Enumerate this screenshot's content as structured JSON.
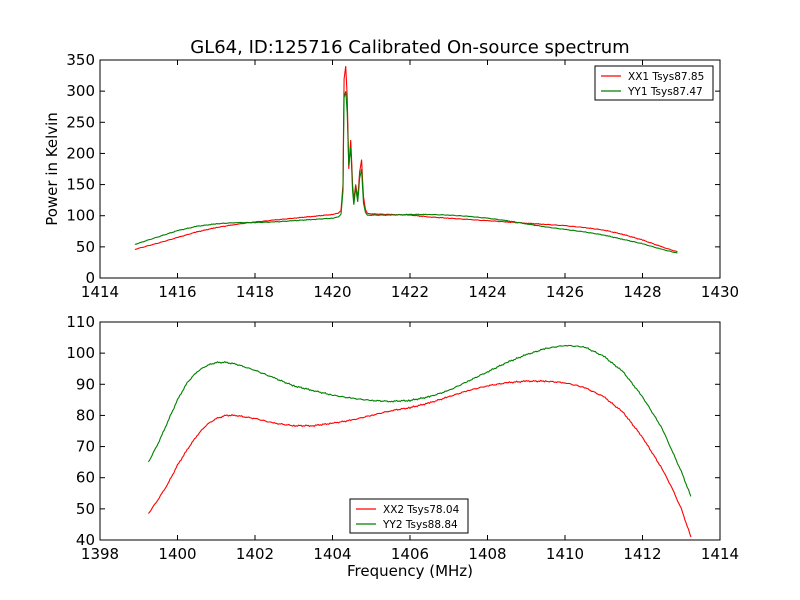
{
  "title": "GL64, ID:125716 Calibrated On-source spectrum",
  "chart_data": [
    {
      "type": "line",
      "xlim": [
        1414,
        1430
      ],
      "ylim": [
        0,
        350
      ],
      "xticks": [
        1414,
        1416,
        1418,
        1420,
        1422,
        1424,
        1426,
        1428,
        1430
      ],
      "yticks": [
        0,
        50,
        100,
        150,
        200,
        250,
        300,
        350
      ],
      "xlabel": "",
      "ylabel": "Power in Kelvin",
      "legend_position": "top-right",
      "series": [
        {
          "name": "XX1 Tsys87.85",
          "color": "#ff0000",
          "x": [
            1414.9,
            1415.5,
            1416.0,
            1416.5,
            1417.0,
            1417.5,
            1418.0,
            1418.5,
            1419.0,
            1419.5,
            1420.0,
            1420.15,
            1420.22,
            1420.27,
            1420.3,
            1420.34,
            1420.38,
            1420.42,
            1420.47,
            1420.52,
            1420.55,
            1420.6,
            1420.65,
            1420.7,
            1420.75,
            1420.8,
            1420.85,
            1420.9,
            1421.0,
            1421.5,
            1422.0,
            1422.5,
            1423.0,
            1423.5,
            1424.0,
            1424.5,
            1425.0,
            1425.5,
            1426.0,
            1426.5,
            1427.0,
            1427.5,
            1428.0,
            1428.5,
            1428.9
          ],
          "y": [
            46,
            56,
            65,
            74,
            81,
            86,
            90,
            93,
            96,
            99,
            102,
            104,
            108,
            150,
            320,
            340,
            290,
            175,
            222,
            150,
            125,
            150,
            128,
            170,
            190,
            130,
            110,
            104,
            103,
            102,
            101,
            98,
            96,
            94,
            92,
            90,
            88,
            86,
            84,
            81,
            77,
            70,
            61,
            50,
            42
          ]
        },
        {
          "name": "YY1 Tsys87.47",
          "color": "#008000",
          "x": [
            1414.9,
            1415.5,
            1416.0,
            1416.5,
            1417.0,
            1417.5,
            1418.0,
            1418.5,
            1419.0,
            1419.5,
            1420.0,
            1420.15,
            1420.22,
            1420.27,
            1420.3,
            1420.34,
            1420.38,
            1420.42,
            1420.47,
            1420.52,
            1420.55,
            1420.6,
            1420.65,
            1420.7,
            1420.75,
            1420.8,
            1420.85,
            1420.9,
            1421.0,
            1421.5,
            1422.0,
            1422.5,
            1423.0,
            1423.5,
            1424.0,
            1424.5,
            1425.0,
            1425.5,
            1426.0,
            1426.5,
            1427.0,
            1427.5,
            1428.0,
            1428.5,
            1428.9
          ],
          "y": [
            54,
            66,
            76,
            83,
            87,
            89,
            89,
            90,
            92,
            94,
            96,
            98,
            102,
            140,
            290,
            300,
            265,
            180,
            210,
            140,
            118,
            145,
            122,
            160,
            175,
            120,
            105,
            101,
            101,
            101,
            102,
            102,
            101,
            99,
            96,
            92,
            87,
            82,
            78,
            74,
            69,
            62,
            55,
            46,
            40
          ]
        }
      ]
    },
    {
      "type": "line",
      "xlim": [
        1398,
        1414
      ],
      "ylim": [
        40,
        110
      ],
      "xticks": [
        1398,
        1400,
        1402,
        1404,
        1406,
        1408,
        1410,
        1412,
        1414
      ],
      "yticks": [
        40,
        50,
        60,
        70,
        80,
        90,
        100,
        110
      ],
      "xlabel": "Frequency (MHz)",
      "ylabel": "",
      "legend_position": "lower-center",
      "series": [
        {
          "name": "XX2 Tsys78.04",
          "color": "#ff0000",
          "x": [
            1399.25,
            1399.5,
            1399.75,
            1400.0,
            1400.25,
            1400.5,
            1400.75,
            1401.0,
            1401.25,
            1401.5,
            1401.75,
            1402.0,
            1402.5,
            1403.0,
            1403.5,
            1404.0,
            1404.5,
            1405.0,
            1405.5,
            1406.0,
            1406.5,
            1407.0,
            1407.5,
            1408.0,
            1408.5,
            1409.0,
            1409.5,
            1410.0,
            1410.5,
            1411.0,
            1411.5,
            1412.0,
            1412.5,
            1412.75,
            1413.0,
            1413.25
          ],
          "y": [
            48.5,
            53,
            58,
            64,
            69,
            73.5,
            77,
            79,
            80,
            80,
            79.5,
            79,
            77.5,
            76.7,
            76.7,
            77.5,
            78.5,
            80,
            81.5,
            82.5,
            84,
            86,
            88,
            89.5,
            90.5,
            91,
            91,
            90.5,
            89,
            86,
            81,
            73,
            63,
            57,
            50,
            41
          ]
        },
        {
          "name": "YY2 Tsys88.84",
          "color": "#008000",
          "x": [
            1399.25,
            1399.5,
            1399.75,
            1400.0,
            1400.25,
            1400.5,
            1400.75,
            1401.0,
            1401.25,
            1401.5,
            1401.75,
            1402.0,
            1402.5,
            1403.0,
            1403.5,
            1404.0,
            1404.5,
            1405.0,
            1405.5,
            1406.0,
            1406.5,
            1407.0,
            1407.5,
            1408.0,
            1408.5,
            1409.0,
            1409.5,
            1410.0,
            1410.5,
            1411.0,
            1411.5,
            1412.0,
            1412.5,
            1412.75,
            1413.0,
            1413.25
          ],
          "y": [
            65,
            71,
            78,
            85,
            90.5,
            94,
            96,
            97,
            97,
            96.5,
            95.5,
            94.5,
            92,
            89.5,
            88,
            86.5,
            85.5,
            84.8,
            84.5,
            84.8,
            86,
            88,
            91,
            94,
            97,
            99.5,
            101.5,
            102.5,
            102,
            99,
            94,
            86,
            76,
            69,
            62,
            54
          ]
        }
      ]
    }
  ]
}
